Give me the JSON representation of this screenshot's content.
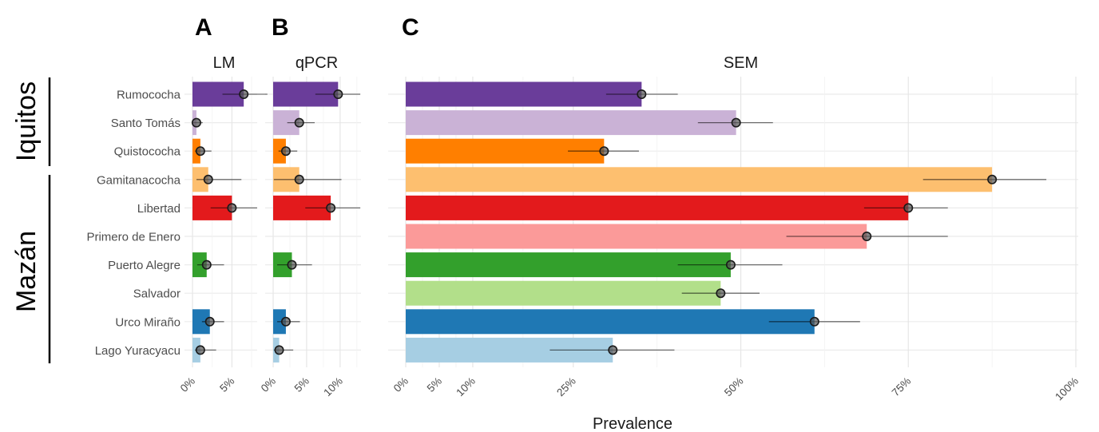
{
  "figure": {
    "regions": [
      "Iquitos",
      "Mazán"
    ],
    "xlabel": "Prevalence"
  },
  "categories": [
    "Rumococha",
    "Santo Tomás",
    "Quistococha",
    "Gamitanacocha",
    "Libertad",
    "Primero de Enero",
    "Puerto Alegre",
    "Salvador",
    "Urco Miraño",
    "Lago Yuracyacu"
  ],
  "region_groups": [
    {
      "name": "Iquitos",
      "categories": [
        "Rumococha",
        "Santo Tomás",
        "Quistococha"
      ]
    },
    {
      "name": "Mazán",
      "categories": [
        "Gamitanacocha",
        "Libertad",
        "Primero de Enero",
        "Puerto Alegre",
        "Salvador",
        "Urco Miraño",
        "Lago Yuracyacu"
      ]
    }
  ],
  "colors": [
    "#6a3d9a",
    "#cab2d6",
    "#ff7f00",
    "#fdbf6f",
    "#e31a1c",
    "#fb9a99",
    "#33a02c",
    "#b2df8a",
    "#1f78b4",
    "#a6cee3"
  ],
  "chart_data": [
    {
      "type": "bar",
      "panel": "A",
      "title": "LM",
      "xlabel": "Prevalence",
      "xlim": [
        0,
        8
      ],
      "xticks": [
        0,
        5
      ],
      "xticklabels": [
        "0%",
        "5%"
      ],
      "orientation": "horizontal",
      "categories": [
        "Rumococha",
        "Santo Tomás",
        "Quistococha",
        "Gamitanacocha",
        "Libertad",
        "Primero de Enero",
        "Puerto Alegre",
        "Salvador",
        "Urco Miraño",
        "Lago Yuracyacu"
      ],
      "values": [
        6.5,
        0.5,
        1.0,
        2.0,
        5.0,
        null,
        1.8,
        null,
        2.2,
        1.0
      ],
      "ci_low": [
        3.8,
        0.1,
        0.3,
        0.5,
        2.3,
        null,
        0.6,
        null,
        1.2,
        0.3
      ],
      "ci_high": [
        9.5,
        1.3,
        2.4,
        6.2,
        8.2,
        null,
        4.0,
        null,
        4.0,
        3.0
      ]
    },
    {
      "type": "bar",
      "panel": "B",
      "title": "qPCR",
      "xlabel": "Prevalence",
      "xlim": [
        0,
        13
      ],
      "xticks": [
        0,
        5,
        10
      ],
      "xticklabels": [
        "0%",
        "5%",
        "10%"
      ],
      "orientation": "horizontal",
      "categories": [
        "Rumococha",
        "Santo Tomás",
        "Quistococha",
        "Gamitanacocha",
        "Libertad",
        "Primero de Enero",
        "Puerto Alegre",
        "Salvador",
        "Urco Miraño",
        "Lago Yuracyacu"
      ],
      "values": [
        9.7,
        3.9,
        1.9,
        3.9,
        8.6,
        null,
        2.8,
        null,
        1.9,
        0.9
      ],
      "ci_low": [
        6.3,
        2.1,
        0.8,
        0.1,
        4.8,
        null,
        0.6,
        null,
        0.6,
        0.1
      ],
      "ci_high": [
        13.0,
        6.2,
        3.6,
        10.2,
        13.0,
        null,
        5.8,
        null,
        4.0,
        3.0
      ]
    },
    {
      "type": "bar",
      "panel": "C",
      "title": "SEM",
      "xlabel": "Prevalence",
      "xlim": [
        0,
        100
      ],
      "xticks": [
        0,
        5,
        10,
        25,
        50,
        75,
        100
      ],
      "xticklabels": [
        "0%",
        "5%",
        "10%",
        "25%",
        "50%",
        "75%",
        "100%"
      ],
      "orientation": "horizontal",
      "categories": [
        "Rumococha",
        "Santo Tomás",
        "Quistococha",
        "Gamitanacocha",
        "Libertad",
        "Primero de Enero",
        "Puerto Alegre",
        "Salvador",
        "Urco Miraño",
        "Lago Yuracyacu"
      ],
      "values": [
        35.2,
        49.3,
        29.6,
        87.5,
        75.0,
        68.8,
        48.5,
        47.0,
        61.0,
        30.9
      ],
      "ci_low": [
        29.9,
        43.6,
        24.2,
        77.2,
        68.4,
        56.8,
        40.6,
        41.2,
        54.2,
        21.5
      ],
      "ci_high": [
        40.6,
        54.8,
        34.8,
        95.6,
        80.9,
        80.9,
        56.2,
        52.8,
        67.8,
        40.1
      ]
    }
  ]
}
